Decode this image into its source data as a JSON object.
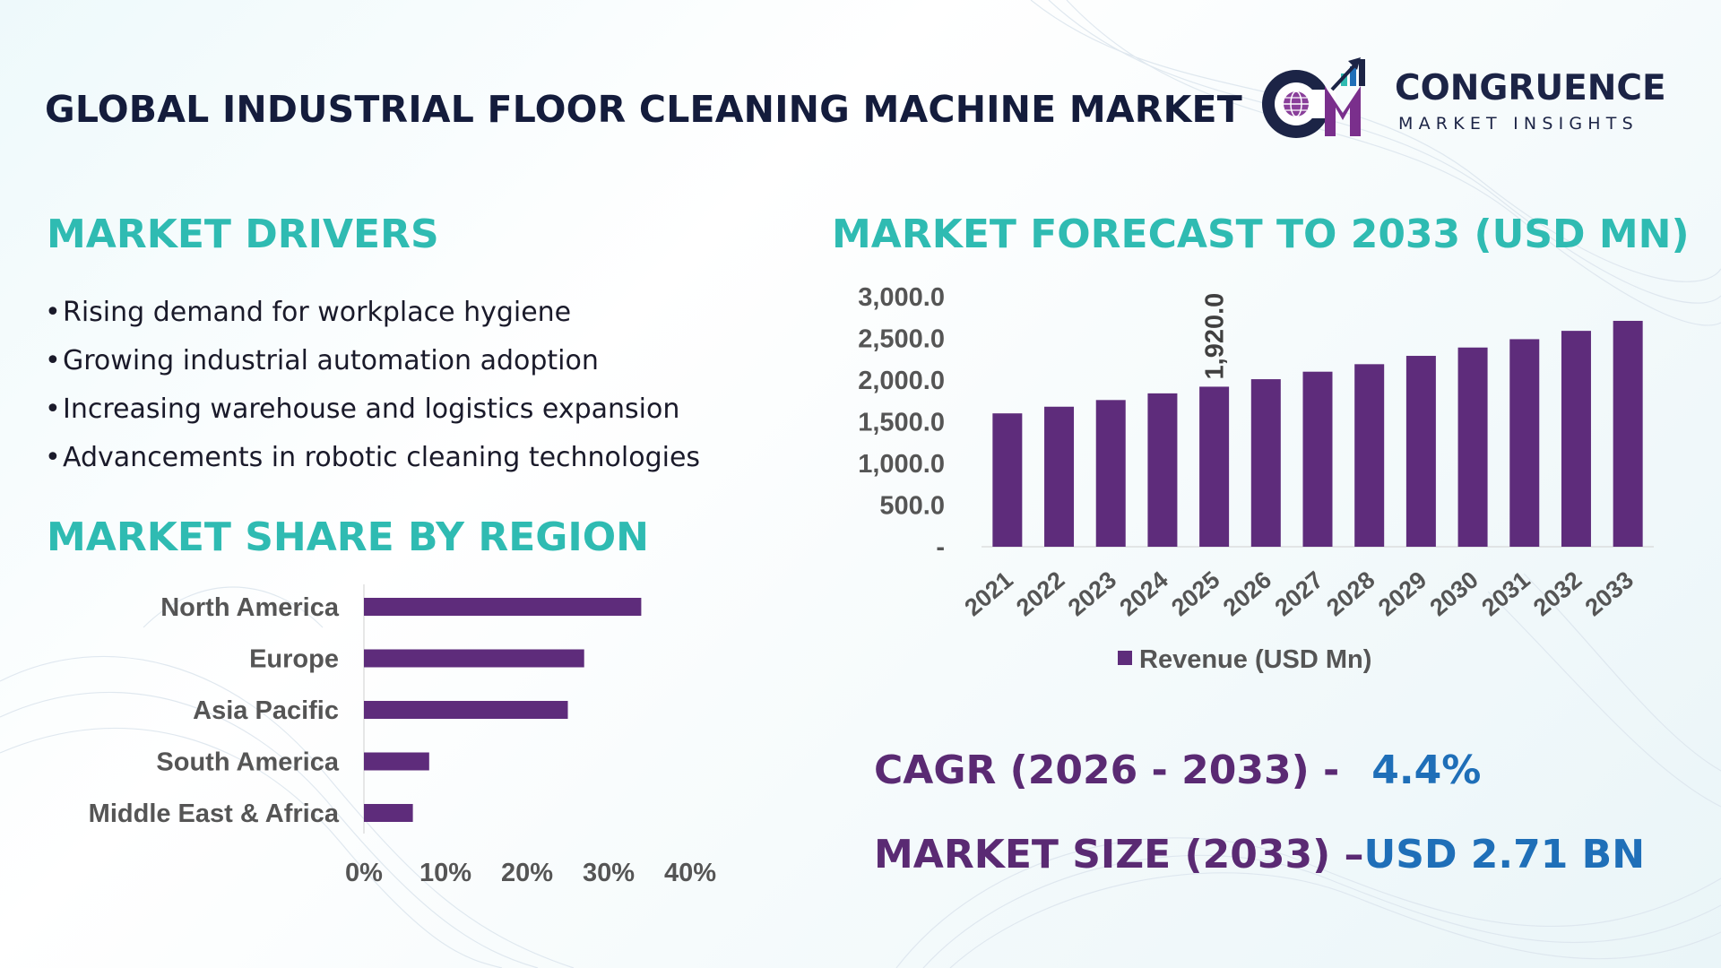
{
  "header": {
    "title": "GLOBAL INDUSTRIAL FLOOR CLEANING MACHINE MARKET",
    "logo_letters": "CM",
    "logo_name": "CONGRUENCE",
    "logo_sub": "MARKET INSIGHTS"
  },
  "drivers": {
    "heading": "MARKET DRIVERS",
    "items": [
      "Rising demand for workplace hygiene",
      "Growing industrial automation adoption",
      "Increasing warehouse and logistics expansion",
      "Advancements in robotic cleaning technologies"
    ]
  },
  "region": {
    "heading": "MARKET SHARE BY REGION"
  },
  "forecast": {
    "heading": "MARKET FORECAST TO 2033 (USD MN)"
  },
  "cagr": {
    "label": "CAGR (2026 - 2033) -",
    "value": "4.4%"
  },
  "market_size": {
    "label": "MARKET SIZE (2033) –",
    "value": "USD 2.71 BN"
  },
  "colors": {
    "bar": "#5e2c7b",
    "teal": "#2fbbb2",
    "accent_blue": "#1f6fb8",
    "purple_text": "#5a2a73",
    "title_text": "#141c3c",
    "axis_text": "#555555"
  },
  "icons": [
    "globe-icon",
    "growth-bars-icon",
    "arrow-up-icon",
    "legend-square-icon"
  ],
  "chart_data": [
    {
      "type": "bar",
      "orientation": "horizontal",
      "categories": [
        "North America",
        "Europe",
        "Asia Pacific",
        "South America",
        "Middle East & Africa"
      ],
      "values": [
        34,
        27,
        25,
        8,
        6
      ],
      "value_unit": "%",
      "xlim": [
        0,
        40
      ],
      "x_ticks": [
        "0%",
        "10%",
        "20%",
        "30%",
        "40%"
      ],
      "grid": false
    },
    {
      "type": "bar",
      "orientation": "vertical",
      "categories": [
        "2021",
        "2022",
        "2023",
        "2024",
        "2025",
        "2026",
        "2027",
        "2028",
        "2029",
        "2030",
        "2031",
        "2032",
        "2033"
      ],
      "series": [
        {
          "name": "Revenue (USD Mn)",
          "values": [
            1600,
            1680,
            1760,
            1840,
            1920,
            2010,
            2100,
            2190,
            2290,
            2390,
            2490,
            2590,
            2710
          ]
        }
      ],
      "ylim": [
        0,
        3000
      ],
      "y_ticks": [
        "-",
        "500.0",
        "1,000.0",
        "1,500.0",
        "2,000.0",
        "2,500.0",
        "3,000.0"
      ],
      "data_labels": [
        {
          "category": "2025",
          "text": "1,920.0"
        }
      ],
      "legend": "bottom",
      "grid": false
    }
  ]
}
